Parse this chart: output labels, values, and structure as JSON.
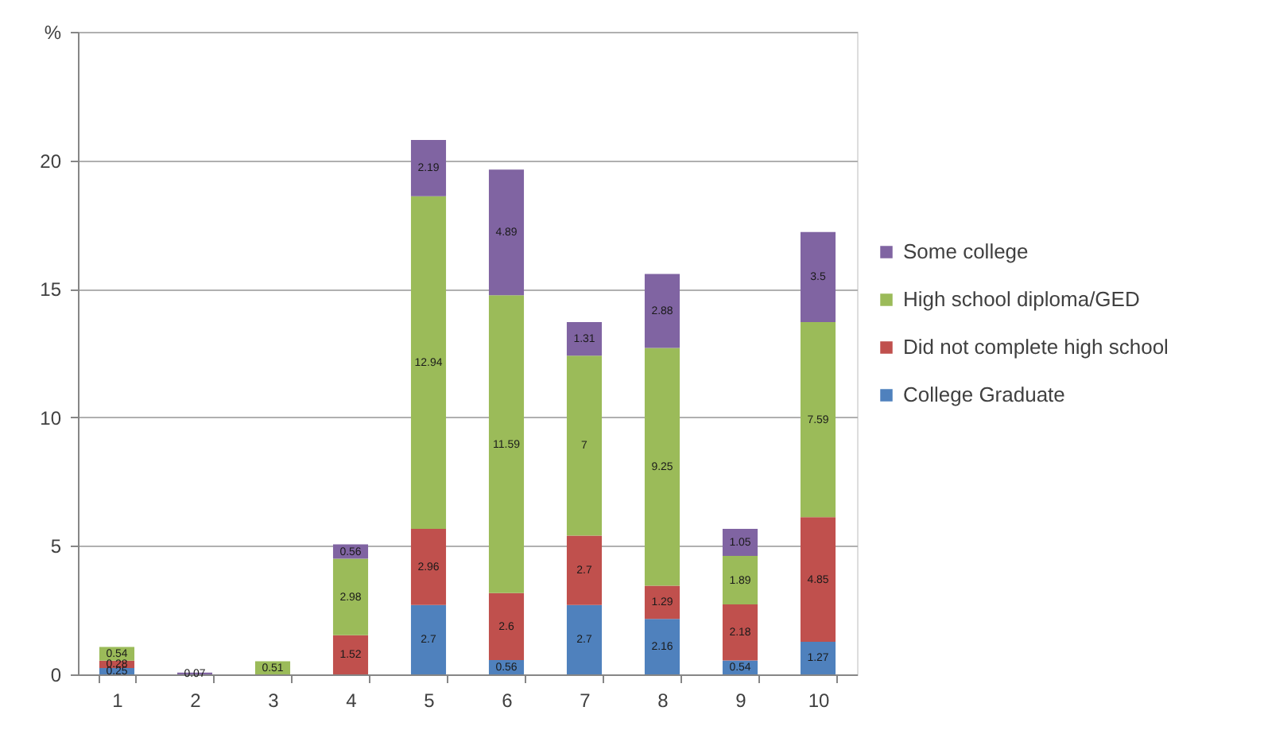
{
  "chart_data": {
    "type": "bar",
    "stacked": true,
    "categories": [
      "1",
      "2",
      "3",
      "4",
      "5",
      "6",
      "7",
      "8",
      "9",
      "10"
    ],
    "series": [
      {
        "name": "College Graduate",
        "color": "#4f81bd",
        "values": [
          0.25,
          0,
          0,
          0,
          2.7,
          0.56,
          2.7,
          2.16,
          0.54,
          1.27
        ],
        "value_labels": [
          "0.25",
          null,
          null,
          null,
          "2.7",
          "0.56",
          "2.7",
          "2.16",
          "0.54",
          "1.27"
        ]
      },
      {
        "name": "Did not complete high school",
        "color": "#c0504d",
        "values": [
          0.28,
          0,
          0,
          1.52,
          2.96,
          2.6,
          2.7,
          1.29,
          2.18,
          4.85
        ],
        "value_labels": [
          "0.28",
          null,
          null,
          "1.52",
          "2.96",
          "2.6",
          "2.7",
          "1.29",
          "2.18",
          "4.85"
        ]
      },
      {
        "name": "High school diploma/GED",
        "color": "#9bbb59",
        "values": [
          0.54,
          0,
          0.51,
          2.98,
          12.94,
          11.59,
          7,
          9.25,
          1.89,
          7.59
        ],
        "value_labels": [
          "0.54",
          null,
          "0.51",
          "2.98",
          "12.94",
          "11.59",
          "7",
          "9.25",
          "1.89",
          "7.59"
        ]
      },
      {
        "name": "Some college",
        "color": "#8064a2",
        "values": [
          0,
          0.07,
          0,
          0.56,
          2.19,
          4.89,
          1.31,
          2.88,
          1.05,
          3.5
        ],
        "value_labels": [
          null,
          "0.07",
          null,
          "0.56",
          "2.19",
          "4.89",
          "1.31",
          "2.88",
          "1.05",
          "3.5"
        ]
      }
    ],
    "ylim": [
      0,
      25
    ],
    "yticks": [
      0,
      5,
      10,
      15,
      20,
      {
        "value": 25,
        "label": "%"
      }
    ],
    "grid": "y",
    "legend": "right"
  }
}
